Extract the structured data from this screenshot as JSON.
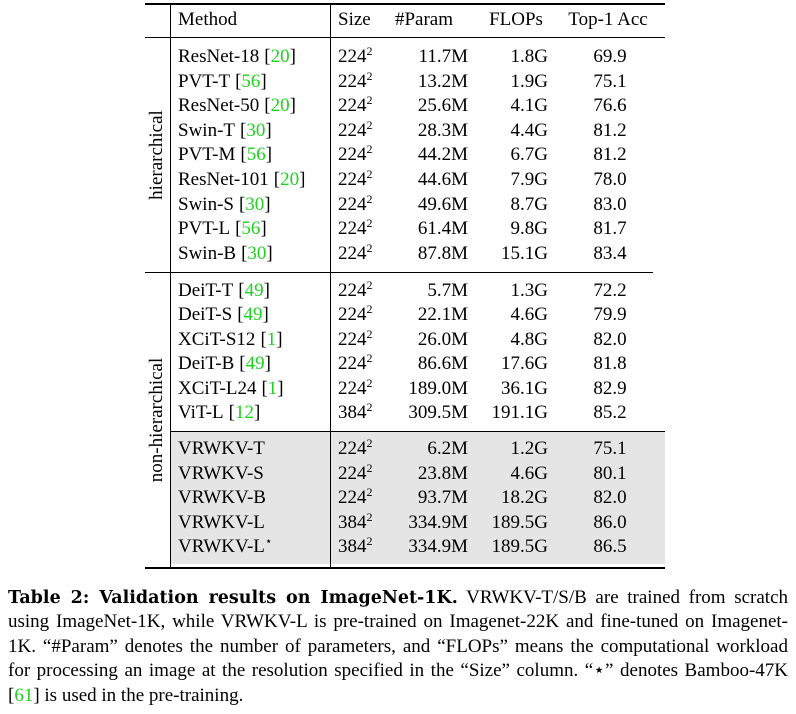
{
  "table": {
    "header": [
      "Method",
      "Size",
      "#Param",
      "FLOPs",
      "Top-1 Acc"
    ],
    "groups": [
      {
        "label": "hierarchical",
        "rows": [
          {
            "method": "ResNet-18",
            "ref": "[20]",
            "size": "224",
            "exp": "2",
            "param": "11.7M",
            "flops": "1.8G",
            "acc": "69.9"
          },
          {
            "method": "PVT-T",
            "ref": "[56]",
            "size": "224",
            "exp": "2",
            "param": "13.2M",
            "flops": "1.9G",
            "acc": "75.1"
          },
          {
            "method": "ResNet-50",
            "ref": "[20]",
            "size": "224",
            "exp": "2",
            "param": "25.6M",
            "flops": "4.1G",
            "acc": "76.6"
          },
          {
            "method": "Swin-T",
            "ref": "[30]",
            "size": "224",
            "exp": "2",
            "param": "28.3M",
            "flops": "4.4G",
            "acc": "81.2"
          },
          {
            "method": "PVT-M",
            "ref": "[56]",
            "size": "224",
            "exp": "2",
            "param": "44.2M",
            "flops": "6.7G",
            "acc": "81.2"
          },
          {
            "method": "ResNet-101",
            "ref": "[20]",
            "size": "224",
            "exp": "2",
            "param": "44.6M",
            "flops": "7.9G",
            "acc": "78.0"
          },
          {
            "method": "Swin-S",
            "ref": "[30]",
            "size": "224",
            "exp": "2",
            "param": "49.6M",
            "flops": "8.7G",
            "acc": "83.0"
          },
          {
            "method": "PVT-L",
            "ref": "[56]",
            "size": "224",
            "exp": "2",
            "param": "61.4M",
            "flops": "9.8G",
            "acc": "81.7"
          },
          {
            "method": "Swin-B",
            "ref": "[30]",
            "size": "224",
            "exp": "2",
            "param": "87.8M",
            "flops": "15.1G",
            "acc": "83.4"
          }
        ]
      },
      {
        "label": "non-hierarchical",
        "rows": [
          {
            "method": "DeiT-T",
            "ref": "[49]",
            "size": "224",
            "exp": "2",
            "param": "5.7M",
            "flops": "1.3G",
            "acc": "72.2"
          },
          {
            "method": "DeiT-S",
            "ref": "[49]",
            "size": "224",
            "exp": "2",
            "param": "22.1M",
            "flops": "4.6G",
            "acc": "79.9"
          },
          {
            "method": "XCiT-S12",
            "ref": "[1]",
            "size": "224",
            "exp": "2",
            "param": "26.0M",
            "flops": "4.8G",
            "acc": "82.0"
          },
          {
            "method": "DeiT-B",
            "ref": "[49]",
            "size": "224",
            "exp": "2",
            "param": "86.6M",
            "flops": "17.6G",
            "acc": "81.8"
          },
          {
            "method": "XCiT-L24",
            "ref": "[1]",
            "size": "224",
            "exp": "2",
            "param": "189.0M",
            "flops": "36.1G",
            "acc": "82.9"
          },
          {
            "method": "ViT-L",
            "ref": "[12]",
            "size": "384",
            "exp": "2",
            "param": "309.5M",
            "flops": "191.1G",
            "acc": "85.2"
          }
        ],
        "highlight_rows": [
          {
            "method": "VRWKV-T",
            "size": "224",
            "exp": "2",
            "param": "6.2M",
            "flops": "1.2G",
            "acc": "75.1"
          },
          {
            "method": "VRWKV-S",
            "size": "224",
            "exp": "2",
            "param": "23.8M",
            "flops": "4.6G",
            "acc": "80.1"
          },
          {
            "method": "VRWKV-B",
            "size": "224",
            "exp": "2",
            "param": "93.7M",
            "flops": "18.2G",
            "acc": "82.0"
          },
          {
            "method": "VRWKV-L",
            "size": "384",
            "exp": "2",
            "param": "334.9M",
            "flops": "189.5G",
            "acc": "86.0"
          },
          {
            "method": "VRWKV-L",
            "mark": "⋆",
            "size": "384",
            "exp": "2",
            "param": "334.9M",
            "flops": "189.5G",
            "acc": "86.5"
          }
        ]
      }
    ]
  },
  "caption": {
    "title": "Table 2: Validation results on ImageNet-1K.",
    "text": "VRWKV-T/S/B are trained from scratch using ImageNet-1K, while VRWKV-L is pre-trained on Imagenet-22K and fine-tuned on Imagenet-1K. “#Param” denotes the number of parameters, and “FLOPs” means the computational workload for processing an image at the resolution specified in the “Size” column. “⋆” denotes Bamboo-47K [61] is used in the pre-training."
  }
}
